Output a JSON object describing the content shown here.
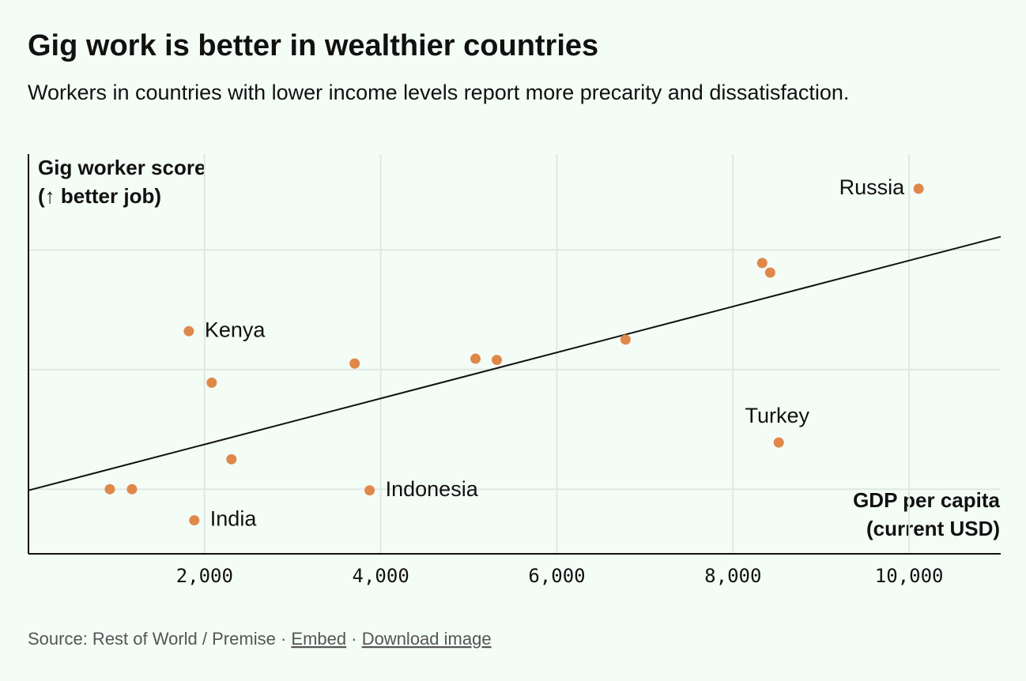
{
  "title": "Gig work is better in wealthier countries",
  "subtitle": "Workers in countries with lower income levels report more precarity and dissatisfaction.",
  "chart_data": {
    "type": "scatter",
    "y_label": [
      "Gig worker score",
      "(↑ better job)"
    ],
    "x_label": [
      "GDP per capita",
      "(current USD)"
    ],
    "xlim": [
      0,
      11040
    ],
    "ylim": [
      0.46,
      3.8
    ],
    "xticks": [
      {
        "value": 2000,
        "label": "2,000"
      },
      {
        "value": 4000,
        "label": "4,000"
      },
      {
        "value": 6000,
        "label": "6,000"
      },
      {
        "value": 8000,
        "label": "8,000"
      },
      {
        "value": 10000,
        "label": "10,000"
      }
    ],
    "yticks": [
      1,
      2,
      3
    ],
    "grid": true,
    "series": [
      {
        "color": "#e0884a",
        "x": [
          10108,
          8332,
          8422,
          1821,
          6780,
          3704,
          5076,
          5318,
          2081,
          8520,
          2305,
          924,
          1175,
          3874,
          1883
        ],
        "values": [
          3.51,
          2.89,
          2.81,
          2.32,
          2.25,
          2.05,
          2.09,
          2.08,
          1.89,
          1.39,
          1.25,
          1.0,
          1.0,
          0.99,
          0.74
        ],
        "labels": [
          "Russia",
          null,
          null,
          "Kenya",
          null,
          null,
          null,
          null,
          null,
          "Turkey",
          null,
          null,
          null,
          "Indonesia",
          "India"
        ]
      }
    ],
    "trendline": {
      "x": [
        0,
        11040
      ],
      "values": [
        0.99,
        3.11
      ],
      "color": "#111111"
    }
  },
  "footer": {
    "source": "Source: Rest of World / Premise",
    "separator": "·",
    "links": [
      "Embed",
      "Download image"
    ]
  }
}
